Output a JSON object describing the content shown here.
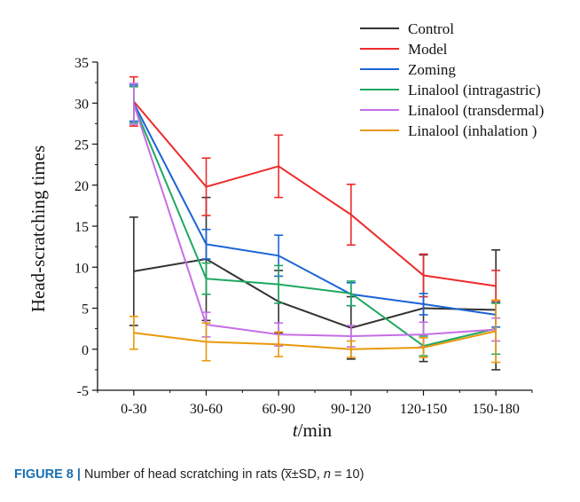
{
  "figure": {
    "caption_label": "FIGURE 8",
    "caption_sep": " | ",
    "caption_text_a": "Number of head scratching in rats (",
    "caption_xbar": "x̅",
    "caption_text_b": "±SD, ",
    "caption_n": "n",
    "caption_text_c": " = 10)"
  },
  "chart_data": {
    "type": "line",
    "xlabel_italic": "t",
    "xlabel_rest": "/min",
    "ylabel": "Head-scratching times",
    "ylim": [
      -5,
      35
    ],
    "yticks": [
      -5,
      0,
      5,
      10,
      15,
      20,
      25,
      30,
      35
    ],
    "categories": [
      "0-30",
      "30-60",
      "60-90",
      "90-120",
      "120-150",
      "150-180"
    ],
    "grid": false,
    "legend_position": "top-right",
    "series": [
      {
        "name": "Control",
        "color": "#333333",
        "values": [
          9.5,
          11.0,
          5.8,
          2.6,
          5.0,
          4.8
        ],
        "errors": [
          6.6,
          7.5,
          3.8,
          3.8,
          6.5,
          7.3
        ]
      },
      {
        "name": "Model",
        "color": "#ee2a2a",
        "values": [
          30.2,
          19.8,
          22.3,
          16.4,
          9.0,
          7.7
        ],
        "errors": [
          3.0,
          3.5,
          3.8,
          3.7,
          2.6,
          1.9
        ]
      },
      {
        "name": "Zoming",
        "color": "#1b63d6",
        "values": [
          30.0,
          12.8,
          11.4,
          6.7,
          5.5,
          4.2
        ],
        "errors": [
          2.2,
          1.8,
          2.5,
          1.4,
          1.3,
          1.5
        ]
      },
      {
        "name": "Linalool (intragastric)",
        "color": "#1ea860",
        "values": [
          29.8,
          8.6,
          7.9,
          6.8,
          0.4,
          2.5
        ],
        "errors": [
          2.2,
          1.9,
          2.3,
          1.5,
          1.2,
          3.1
        ]
      },
      {
        "name": "Linalool (transdermal)",
        "color": "#c56ee6",
        "values": [
          29.9,
          3.0,
          1.8,
          1.6,
          1.8,
          2.4
        ],
        "errors": [
          2.5,
          1.5,
          1.4,
          1.3,
          1.5,
          1.4
        ]
      },
      {
        "name": "Linalool (inhalation )",
        "color": "#e8990a",
        "values": [
          2.0,
          0.9,
          0.6,
          0.0,
          0.2,
          2.2
        ],
        "errors": [
          2.0,
          2.3,
          1.5,
          1.0,
          1.2,
          3.8
        ]
      }
    ]
  }
}
